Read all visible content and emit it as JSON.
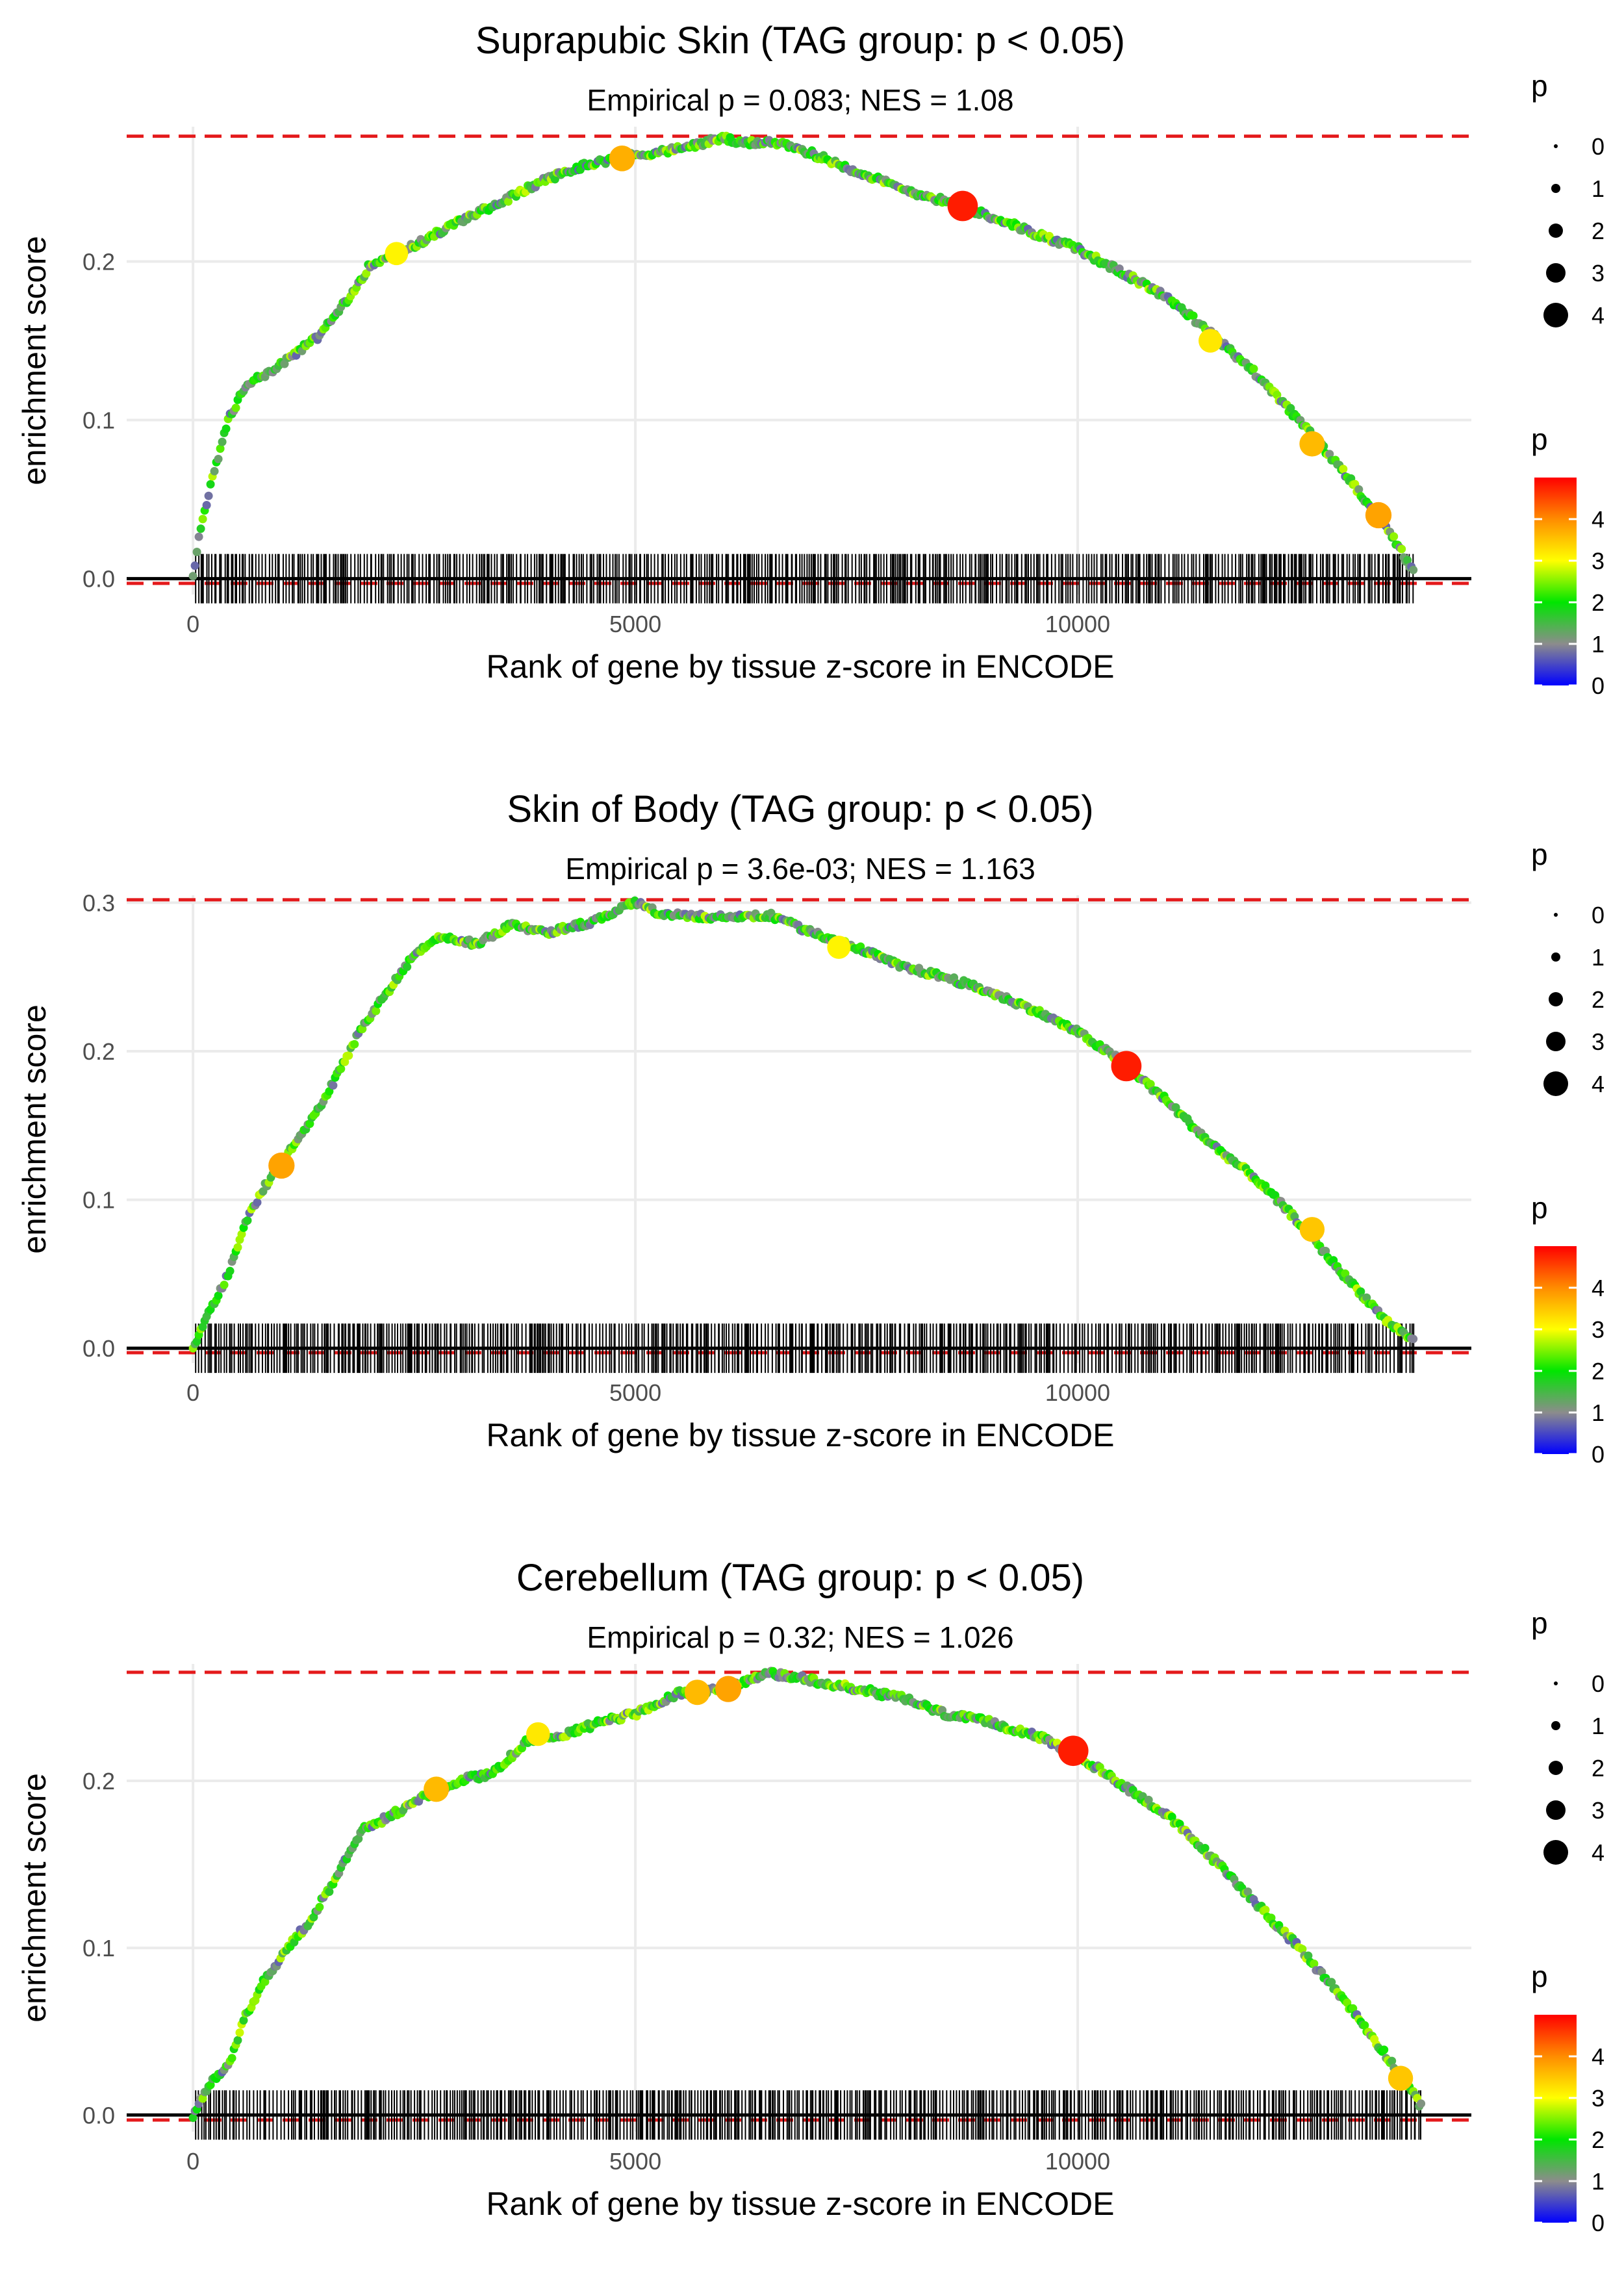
{
  "chart_data": [
    {
      "type": "line",
      "title": "Suprapubic Skin (TAG group: p < 0.05)",
      "subtitle": "Empirical p = 0.083; NES = 1.08",
      "xlabel": "Rank of gene by tissue z-score in ENCODE",
      "ylabel": "enrichment score",
      "xlim": [
        -750,
        14450
      ],
      "ylim": [
        -0.01,
        0.285
      ],
      "xticks": [
        0,
        5000,
        10000
      ],
      "xtick_labels": [
        "0",
        "5000",
        "10000"
      ],
      "yticks": [
        0.0,
        0.1,
        0.2
      ],
      "ytick_labels": [
        "0.0",
        "0.1",
        "0.2"
      ],
      "max_es": 0.279,
      "min_es": -0.003,
      "n_genes": 13800,
      "curve": [
        [
          0,
          0
        ],
        [
          80,
          0.03
        ],
        [
          250,
          0.07
        ],
        [
          400,
          0.1
        ],
        [
          600,
          0.123
        ],
        [
          800,
          0.128
        ],
        [
          1100,
          0.14
        ],
        [
          1400,
          0.152
        ],
        [
          1800,
          0.18
        ],
        [
          2000,
          0.198
        ],
        [
          2500,
          0.21
        ],
        [
          3000,
          0.225
        ],
        [
          3500,
          0.238
        ],
        [
          4000,
          0.252
        ],
        [
          4500,
          0.262
        ],
        [
          5000,
          0.267
        ],
        [
          5500,
          0.271
        ],
        [
          6000,
          0.278
        ],
        [
          6200,
          0.274
        ],
        [
          6500,
          0.276
        ],
        [
          7000,
          0.268
        ],
        [
          7500,
          0.257
        ],
        [
          8000,
          0.246
        ],
        [
          8500,
          0.238
        ],
        [
          9000,
          0.229
        ],
        [
          9500,
          0.218
        ],
        [
          10000,
          0.208
        ],
        [
          10500,
          0.193
        ],
        [
          11000,
          0.178
        ],
        [
          11500,
          0.155
        ],
        [
          12000,
          0.13
        ],
        [
          12500,
          0.1
        ],
        [
          13000,
          0.068
        ],
        [
          13500,
          0.032
        ],
        [
          13800,
          0.004
        ]
      ],
      "highlights": [
        {
          "x": 8700,
          "y": 0.235,
          "p": 4.8
        },
        {
          "x": 4850,
          "y": 0.265,
          "p": 3.7
        },
        {
          "x": 12650,
          "y": 0.085,
          "p": 3.6
        },
        {
          "x": 13400,
          "y": 0.04,
          "p": 3.8
        },
        {
          "x": 11500,
          "y": 0.15,
          "p": 3.2
        },
        {
          "x": 2300,
          "y": 0.205,
          "p": 3.1
        }
      ],
      "point_color_p_range": [
        0,
        5
      ]
    },
    {
      "type": "line",
      "title": "Skin of Body (TAG group: p < 0.05)",
      "subtitle": "Empirical p = 3.6e-03; NES = 1.163",
      "xlabel": "Rank of gene by tissue z-score in ENCODE",
      "ylabel": "enrichment score",
      "xlim": [
        -750,
        14450
      ],
      "ylim": [
        -0.01,
        0.305
      ],
      "xticks": [
        0,
        5000,
        10000
      ],
      "xtick_labels": [
        "0",
        "5000",
        "10000"
      ],
      "yticks": [
        0.0,
        0.1,
        0.2,
        0.3
      ],
      "ytick_labels": [
        "0.0",
        "0.1",
        "0.2",
        "0.3"
      ],
      "max_es": 0.302,
      "min_es": -0.003,
      "n_genes": 13800,
      "curve": [
        [
          0,
          0
        ],
        [
          150,
          0.02
        ],
        [
          400,
          0.05
        ],
        [
          600,
          0.085
        ],
        [
          800,
          0.108
        ],
        [
          1000,
          0.125
        ],
        [
          1300,
          0.15
        ],
        [
          1600,
          0.18
        ],
        [
          1900,
          0.215
        ],
        [
          2200,
          0.24
        ],
        [
          2500,
          0.265
        ],
        [
          2800,
          0.278
        ],
        [
          3200,
          0.272
        ],
        [
          3600,
          0.285
        ],
        [
          4000,
          0.28
        ],
        [
          4500,
          0.287
        ],
        [
          5000,
          0.3
        ],
        [
          5300,
          0.292
        ],
        [
          5700,
          0.291
        ],
        [
          6000,
          0.29
        ],
        [
          6500,
          0.292
        ],
        [
          7000,
          0.28
        ],
        [
          7500,
          0.27
        ],
        [
          8000,
          0.257
        ],
        [
          8500,
          0.25
        ],
        [
          9000,
          0.24
        ],
        [
          9500,
          0.228
        ],
        [
          10000,
          0.213
        ],
        [
          10500,
          0.193
        ],
        [
          11000,
          0.167
        ],
        [
          11500,
          0.138
        ],
        [
          12000,
          0.115
        ],
        [
          12500,
          0.085
        ],
        [
          13000,
          0.05
        ],
        [
          13500,
          0.018
        ],
        [
          13800,
          0.005
        ]
      ],
      "highlights": [
        {
          "x": 10550,
          "y": 0.19,
          "p": 4.8
        },
        {
          "x": 1000,
          "y": 0.123,
          "p": 3.8
        },
        {
          "x": 12650,
          "y": 0.08,
          "p": 3.5
        },
        {
          "x": 7300,
          "y": 0.27,
          "p": 3.1
        }
      ],
      "point_color_p_range": [
        0,
        5
      ]
    },
    {
      "type": "line",
      "title": "Cerebellum (TAG group: p < 0.05)",
      "subtitle": "Empirical p = 0.32; NES = 1.026",
      "xlabel": "Rank of gene by tissue z-score in ENCODE",
      "ylabel": "enrichment score",
      "xlim": [
        -750,
        14450
      ],
      "ylim": [
        -0.01,
        0.27
      ],
      "xticks": [
        0,
        5000,
        10000
      ],
      "xtick_labels": [
        "0",
        "5000",
        "10000"
      ],
      "yticks": [
        0.0,
        0.1,
        0.2
      ],
      "ytick_labels": [
        "0.0",
        "0.1",
        "0.2"
      ],
      "max_es": 0.265,
      "min_es": -0.003,
      "n_genes": 13900,
      "curve": [
        [
          0,
          0
        ],
        [
          200,
          0.02
        ],
        [
          400,
          0.03
        ],
        [
          600,
          0.06
        ],
        [
          800,
          0.08
        ],
        [
          1000,
          0.095
        ],
        [
          1300,
          0.115
        ],
        [
          1600,
          0.14
        ],
        [
          1900,
          0.17
        ],
        [
          2200,
          0.178
        ],
        [
          2600,
          0.19
        ],
        [
          3000,
          0.2
        ],
        [
          3400,
          0.205
        ],
        [
          3800,
          0.225
        ],
        [
          4200,
          0.228
        ],
        [
          4600,
          0.235
        ],
        [
          5000,
          0.24
        ],
        [
          5500,
          0.253
        ],
        [
          6000,
          0.255
        ],
        [
          6500,
          0.265
        ],
        [
          7000,
          0.26
        ],
        [
          7500,
          0.255
        ],
        [
          8000,
          0.25
        ],
        [
          8500,
          0.24
        ],
        [
          9000,
          0.235
        ],
        [
          9500,
          0.228
        ],
        [
          10000,
          0.215
        ],
        [
          10500,
          0.198
        ],
        [
          11000,
          0.18
        ],
        [
          11500,
          0.155
        ],
        [
          12000,
          0.128
        ],
        [
          12500,
          0.1
        ],
        [
          13000,
          0.07
        ],
        [
          13500,
          0.035
        ],
        [
          13900,
          0.004
        ]
      ],
      "highlights": [
        {
          "x": 9950,
          "y": 0.218,
          "p": 4.8
        },
        {
          "x": 2750,
          "y": 0.195,
          "p": 3.6
        },
        {
          "x": 5700,
          "y": 0.253,
          "p": 3.6
        },
        {
          "x": 6050,
          "y": 0.255,
          "p": 3.8
        },
        {
          "x": 13650,
          "y": 0.022,
          "p": 3.5
        },
        {
          "x": 3900,
          "y": 0.228,
          "p": 3.2
        }
      ],
      "point_color_p_range": [
        0,
        5
      ]
    }
  ],
  "legends": [
    {
      "size_title": "p",
      "size_labels": [
        "0",
        "1",
        "2",
        "3",
        "4"
      ],
      "color_title": "p",
      "color_labels": [
        "4",
        "3",
        "2",
        "1",
        "0"
      ]
    },
    {
      "size_title": "p",
      "size_labels": [
        "0",
        "1",
        "2",
        "3",
        "4"
      ],
      "color_title": "p",
      "color_labels": [
        "4",
        "3",
        "2",
        "1",
        "0"
      ]
    },
    {
      "size_title": "p",
      "size_labels": [
        "0",
        "1",
        "2",
        "3",
        "4"
      ],
      "color_title": "p",
      "color_labels": [
        "4",
        "3",
        "2",
        "1",
        "0"
      ]
    }
  ],
  "colors": {
    "reference_line": "#e41a1c",
    "zero_line": "#000000",
    "grid": "#ebebeb",
    "rug": "#000000"
  }
}
